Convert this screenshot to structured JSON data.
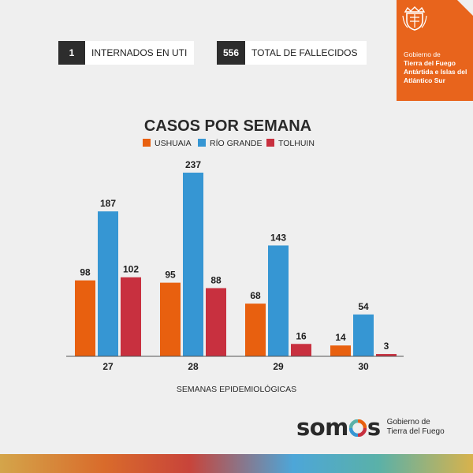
{
  "stats": [
    {
      "value": "1",
      "label": "INTERNADOS EN UTI"
    },
    {
      "value": "556",
      "label": "TOTAL DE FALLECIDOS"
    }
  ],
  "government": {
    "line1": "Gobierno de",
    "line2": "Tierra del Fuego Antártida e Islas del Atlántico Sur"
  },
  "chart_data": {
    "type": "bar",
    "title": "CASOS POR SEMANA",
    "xlabel": "SEMANAS EPIDEMIOLÓGICAS",
    "ylabel": "",
    "categories": [
      "27",
      "28",
      "29",
      "30"
    ],
    "series": [
      {
        "name": "USHUAIA",
        "color": "#e8600f",
        "values": [
          98,
          95,
          68,
          14
        ]
      },
      {
        "name": "RÍO GRANDE",
        "color": "#3696d3",
        "values": [
          187,
          237,
          143,
          54
        ]
      },
      {
        "name": "TOLHUIN",
        "color": "#c8303f",
        "values": [
          102,
          88,
          16,
          3
        ]
      }
    ],
    "ylim": [
      0,
      237
    ],
    "grid": false,
    "legend": "top-center",
    "data_labels": true
  },
  "brand": {
    "word_left": "som",
    "word_right": "s",
    "sub1": "Gobierno de",
    "sub2": "Tierra del Fuego"
  }
}
